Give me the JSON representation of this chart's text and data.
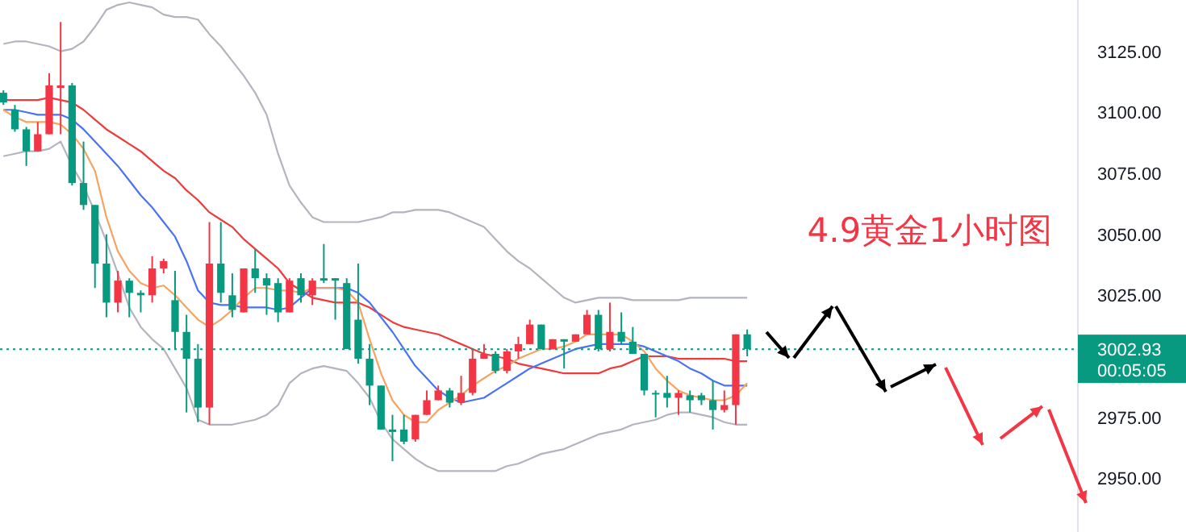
{
  "chart_data": {
    "type": "candlestick",
    "categories": [
      null,
      null,
      null,
      null,
      null,
      null,
      null,
      null,
      null,
      null,
      null,
      null,
      null,
      null,
      null,
      null,
      null,
      null,
      null,
      null,
      null,
      null,
      null,
      null,
      null,
      null,
      null,
      null,
      null,
      null,
      null,
      null,
      null,
      null,
      null,
      null,
      null,
      null,
      null,
      null,
      null,
      null,
      null,
      null,
      null,
      null,
      null,
      null,
      null,
      null,
      null,
      null,
      null,
      null,
      null,
      null,
      null,
      null,
      null,
      null,
      null,
      null,
      null,
      null,
      null,
      null
    ],
    "ohlc": [
      [
        3108,
        3109,
        3103,
        3104
      ],
      [
        3101,
        3103,
        3092,
        3093
      ],
      [
        3093,
        3094,
        3078,
        3084
      ],
      [
        3084,
        3096,
        3084,
        3091
      ],
      [
        3091,
        3116,
        3091,
        3111
      ],
      [
        3110,
        3137,
        3091,
        3111
      ],
      [
        3111,
        3112,
        3070,
        3071
      ],
      [
        3071,
        3088,
        3060,
        3062
      ],
      [
        3062,
        3062,
        3028,
        3038
      ],
      [
        3038,
        3050,
        3016,
        3022
      ],
      [
        3022,
        3035,
        3018,
        3031
      ],
      [
        3031,
        3032,
        3016,
        3026
      ],
      [
        3026,
        3027,
        3018,
        3025
      ],
      [
        3025,
        3041,
        3022,
        3036
      ],
      [
        3036,
        3040,
        3034,
        3039
      ],
      [
        3023,
        3035,
        3003,
        3010
      ],
      [
        3010,
        3017,
        2977,
        2999
      ],
      [
        2999,
        3005,
        2973,
        2979
      ],
      [
        2979,
        3055,
        2972,
        3038
      ],
      [
        3038,
        3055,
        3022,
        3026
      ],
      [
        3025,
        3034,
        3016,
        3019
      ],
      [
        3018,
        3036,
        3018,
        3036
      ],
      [
        3036,
        3044,
        3026,
        3032
      ],
      [
        3032,
        3034,
        3017,
        3029
      ],
      [
        3030,
        3032,
        3014,
        3018
      ],
      [
        3018,
        3032,
        3018,
        3031
      ],
      [
        3032,
        3034,
        3022,
        3025
      ],
      [
        3025,
        3032,
        3021,
        3031
      ],
      [
        3032,
        3046,
        3030,
        3031
      ],
      [
        3032,
        3032,
        3015,
        3031
      ],
      [
        3030,
        3032,
        3003,
        3003
      ],
      [
        3015,
        3038,
        2997,
        2999
      ],
      [
        2999,
        3005,
        2980,
        2988
      ],
      [
        2988,
        2988,
        2970,
        2970
      ],
      [
        2970,
        2976,
        2957,
        2969
      ],
      [
        2970,
        2976,
        2964,
        2965
      ],
      [
        2966,
        2976,
        2965,
        2976
      ],
      [
        2976,
        2986,
        2976,
        2982
      ],
      [
        2982,
        2988,
        2982,
        2986
      ],
      [
        2986,
        2987,
        2979,
        2981
      ],
      [
        2981,
        2992,
        2980,
        2985
      ],
      [
        2985,
        3003,
        2984,
        2999
      ],
      [
        2999,
        3005,
        2999,
        3001
      ],
      [
        3001,
        3002,
        2993,
        2994
      ],
      [
        2994,
        3003,
        2993,
        3002
      ],
      [
        3002,
        3008,
        2999,
        3005
      ],
      [
        3005,
        3015,
        3005,
        3013
      ],
      [
        3013,
        3013,
        3003,
        3003
      ],
      [
        3003,
        3007,
        3003,
        3007
      ],
      [
        3007,
        3007,
        2995,
        3006
      ],
      [
        3006,
        3009,
        3006,
        3009
      ],
      [
        3009,
        3019,
        3009,
        3017
      ],
      [
        3017,
        3019,
        3002,
        3003
      ],
      [
        3003,
        3022,
        3002,
        3010
      ],
      [
        3010,
        3018,
        3005,
        3006
      ],
      [
        3006,
        3012,
        3001,
        3001
      ],
      [
        3001,
        3001,
        2984,
        2986
      ],
      [
        2985,
        2986,
        2975,
        2985
      ],
      [
        2985,
        2992,
        2979,
        2983
      ],
      [
        2983,
        2986,
        2976,
        2985
      ],
      [
        2984,
        2986,
        2977,
        2982
      ],
      [
        2984,
        2985,
        2980,
        2982
      ],
      [
        2982,
        2990,
        2970,
        2978
      ],
      [
        2978,
        2986,
        2977,
        2980
      ],
      [
        2980,
        3009,
        2972,
        3009
      ],
      [
        3009,
        3011,
        3000,
        3003
      ]
    ],
    "colors": [
      "#089981",
      "#089981",
      "#089981",
      "#f23645",
      "#f23645",
      "#f23645",
      "#089981",
      "#089981",
      "#089981",
      "#089981",
      "#f23645",
      "#089981",
      "#089981",
      "#f23645",
      "#f23645",
      "#089981",
      "#089981",
      "#089981",
      "#f23645",
      "#089981",
      "#089981",
      "#f23645",
      "#089981",
      "#089981",
      "#089981",
      "#f23645",
      "#089981",
      "#f23645",
      "#089981",
      "#089981",
      "#089981",
      "#089981",
      "#089981",
      "#089981",
      "#089981",
      "#089981",
      "#f23645",
      "#f23645",
      "#f23645",
      "#089981",
      "#f23645",
      "#f23645",
      "#f23645",
      "#089981",
      "#f23645",
      "#f23645",
      "#f23645",
      "#089981",
      "#f23645",
      "#089981",
      "#f23645",
      "#f23645",
      "#089981",
      "#f23645",
      "#089981",
      "#089981",
      "#089981",
      "#089981",
      "#089981",
      "#f23645",
      "#089981",
      "#089981",
      "#089981",
      "#f23645",
      "#f23645",
      "#089981"
    ],
    "series": [
      {
        "type": "line",
        "color": "#b2b5be",
        "values": [
          3128,
          3129,
          3129,
          3128,
          3127,
          3125,
          3126,
          3129,
          3135,
          3142,
          3144,
          3145,
          3144,
          3143,
          3140,
          3139,
          3139,
          3138,
          3132,
          3127,
          3121,
          3115,
          3108,
          3099,
          3083,
          3070,
          3063,
          3057,
          3055,
          3055,
          3055,
          3055,
          3056,
          3057,
          3059,
          3059,
          3060,
          3060,
          3060,
          3059,
          3057,
          3055,
          3053,
          3048,
          3043,
          3039,
          3036,
          3032,
          3028,
          3024,
          3022,
          3023,
          3024,
          3024,
          3024,
          3023,
          3023,
          3023,
          3023,
          3023,
          3024,
          3024,
          3024,
          3024,
          3024,
          3024
        ]
      },
      {
        "type": "line",
        "color": "#b2b5be",
        "values": [
          3082,
          3083,
          3084,
          3084,
          3085,
          3088,
          3078,
          3070,
          3059,
          3047,
          3034,
          3020,
          3012,
          3007,
          3003,
          2995,
          2987,
          2974,
          2972,
          2972,
          2972,
          2973,
          2974,
          2976,
          2980,
          2989,
          2993,
          2995,
          2996,
          2995,
          2994,
          2989,
          2983,
          2973,
          2966,
          2962,
          2958,
          2955,
          2953,
          2953,
          2953,
          2953,
          2953,
          2953,
          2955,
          2956,
          2958,
          2960,
          2961,
          2962,
          2964,
          2966,
          2968,
          2969,
          2970,
          2972,
          2973,
          2974,
          2976,
          2977,
          2977,
          2976,
          2975,
          2973,
          2972,
          2972
        ]
      },
      {
        "type": "line",
        "color": "#ee3b3b",
        "values": [
          3105,
          3105,
          3105,
          3105,
          3106,
          3105,
          3104,
          3101,
          3097,
          3093,
          3090,
          3087,
          3084,
          3080,
          3076,
          3073,
          3068,
          3064,
          3059,
          3056,
          3053,
          3048,
          3044,
          3040,
          3036,
          3030,
          3027,
          3024,
          3023,
          3022,
          3022,
          3022,
          3020,
          3017,
          3014,
          3012,
          3011,
          3010,
          3009,
          3007,
          3005,
          3003,
          3001,
          3000,
          2999,
          2997,
          2996,
          2995,
          2994,
          2993,
          2993,
          2993,
          2993,
          2995,
          2996,
          2998,
          3000,
          3000,
          3000,
          2999,
          2999,
          2999,
          2999,
          2999,
          2998,
          2998
        ]
      },
      {
        "type": "line",
        "color": "#4a72f5",
        "values": [
          3101,
          3101,
          3100,
          3099,
          3099,
          3099,
          3097,
          3093,
          3088,
          3083,
          3078,
          3072,
          3066,
          3061,
          3055,
          3049,
          3039,
          3027,
          3022,
          3021,
          3021,
          3020,
          3020,
          3020,
          3019,
          3020,
          3024,
          3028,
          3028,
          3028,
          3028,
          3026,
          3022,
          3016,
          3010,
          3003,
          2996,
          2991,
          2986,
          2983,
          2981,
          2982,
          2983,
          2986,
          2989,
          2992,
          2995,
          2997,
          2999,
          3001,
          3003,
          3004,
          3005,
          3005,
          3005,
          3005,
          3004,
          3002,
          3000,
          2998,
          2995,
          2993,
          2990,
          2988,
          2988,
          2988
        ]
      },
      {
        "type": "line",
        "color": "#f5a462",
        "values": [
          3101,
          3098,
          3096,
          3096,
          3096,
          3095,
          3091,
          3085,
          3076,
          3057,
          3043,
          3035,
          3030,
          3028,
          3029,
          3025,
          3020,
          3015,
          3012,
          3015,
          3019,
          3024,
          3028,
          3028,
          3027,
          3027,
          3026,
          3028,
          3028,
          3028,
          3027,
          3022,
          3007,
          2993,
          2982,
          2976,
          2973,
          2973,
          2978,
          2981,
          2984,
          2988,
          2991,
          2994,
          2996,
          2999,
          3001,
          3003,
          3003,
          3004,
          3006,
          3009,
          3009,
          3009,
          3009,
          3006,
          3002,
          2995,
          2990,
          2986,
          2984,
          2983,
          2982,
          2982,
          2984,
          2989
        ]
      }
    ],
    "ylim": [
      2928,
      3146
    ],
    "yticks": [
      {
        "value": 2950,
        "label": "2950.00"
      },
      {
        "value": 2975,
        "label": "2975.00"
      },
      {
        "value": 3025,
        "label": "3025.00"
      },
      {
        "value": 3050,
        "label": "3050.00"
      },
      {
        "value": 3075,
        "label": "3075.00"
      },
      {
        "value": 3100,
        "label": "3100.00"
      },
      {
        "value": 3125,
        "label": "3125.00"
      }
    ],
    "tick_labels": "y",
    "ref_lines": [
      {
        "axis": "y",
        "value": 3002.93,
        "label": "3002.93",
        "color": "#089981",
        "line_style": "dotted"
      }
    ],
    "annotations": [
      "4.9黄金1小时图",
      "00:05:05"
    ]
  }
}
